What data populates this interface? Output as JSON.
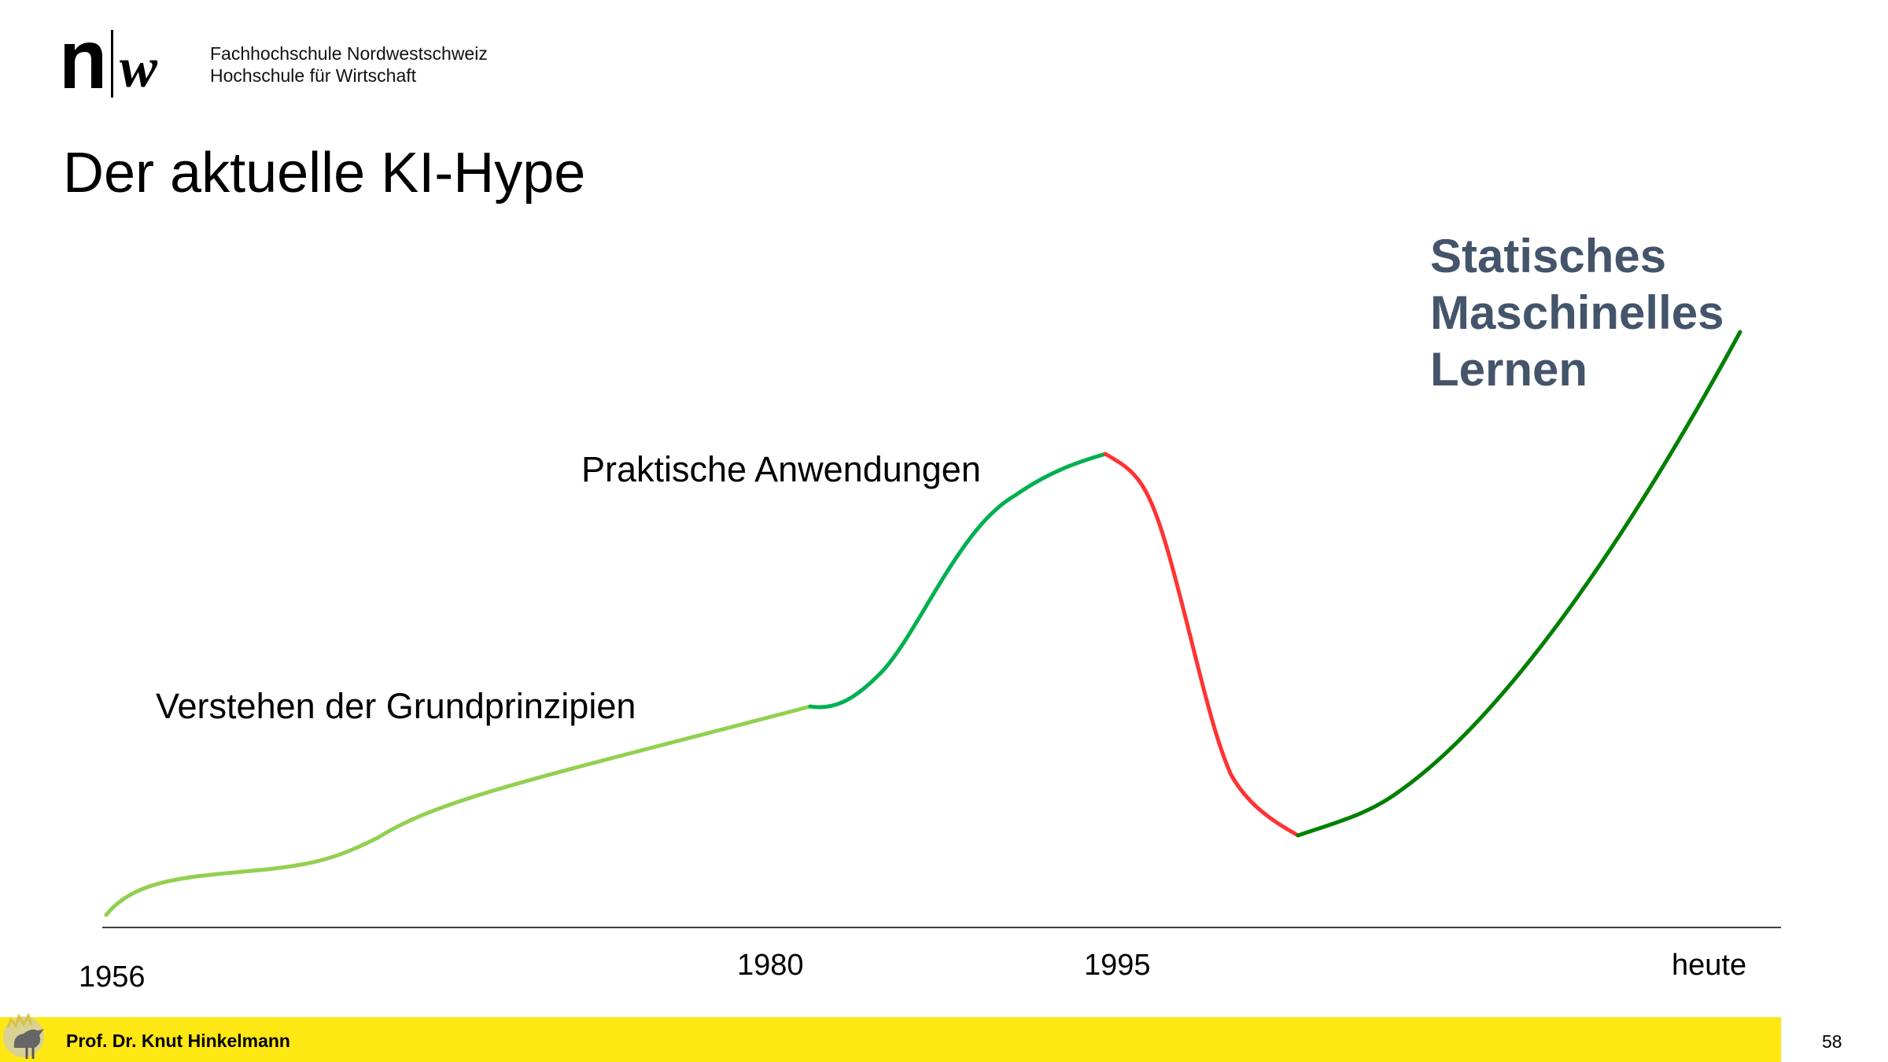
{
  "header": {
    "institution_line1": "Fachhochschule Nordwestschweiz",
    "institution_line2": "Hochschule für Wirtschaft"
  },
  "slide": {
    "title": "Der aktuelle KI-Hype"
  },
  "diagram": {
    "phases": {
      "understanding": "Verstehen der Grundprinzipien",
      "applications": "Praktische Anwendungen",
      "ml_line1": "Statisches",
      "ml_line2": "Maschinelles",
      "ml_line3": "Lernen"
    },
    "axis_labels": {
      "start": "1956",
      "mid1": "1980",
      "mid2": "1995",
      "end": "heute"
    },
    "colors": {
      "early_phase": "#92d050",
      "growth_phase": "#00b050",
      "decline_phase": "#ff3333",
      "recent_phase": "#008000",
      "highlight_text": "#44546a",
      "footer": "#ffe713"
    }
  },
  "footer": {
    "author": "Prof. Dr. Knut Hinkelmann",
    "page_number": "58"
  }
}
